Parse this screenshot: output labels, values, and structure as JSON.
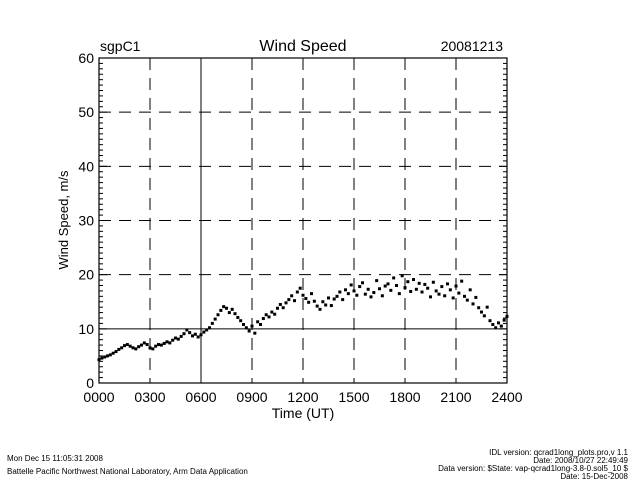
{
  "chart_data": {
    "type": "scatter",
    "title": "Wind Speed",
    "left_label": "sgpC1",
    "right_label": "20081213",
    "xlabel": "Time (UT)",
    "ylabel": "Wind Speed, m/s",
    "xlim": [
      0,
      24
    ],
    "ylim": [
      0,
      60
    ],
    "x_ticks": [
      0,
      3,
      6,
      9,
      12,
      15,
      18,
      21,
      24
    ],
    "x_tick_labels": [
      "0000",
      "0300",
      "0600",
      "0900",
      "1200",
      "1500",
      "1800",
      "2100",
      "2400"
    ],
    "y_ticks": [
      0,
      10,
      20,
      30,
      40,
      50,
      60
    ],
    "y_tick_labels": [
      "0",
      "10",
      "20",
      "30",
      "40",
      "50",
      "60"
    ],
    "grid": {
      "vertical_dashed": [
        3,
        9,
        12,
        15,
        18,
        21
      ],
      "vertical_solid": [
        6
      ],
      "horizontal_dashed": [
        20,
        30,
        40,
        50
      ],
      "horizontal_solid": [
        10
      ]
    },
    "x_step_hours": 0.16667,
    "y": [
      4.3,
      4.6,
      4.8,
      5.0,
      5.2,
      5.5,
      5.8,
      6.2,
      6.5,
      6.9,
      7.1,
      6.8,
      6.5,
      6.3,
      6.7,
      7.0,
      7.4,
      7.1,
      6.5,
      6.3,
      6.8,
      7.1,
      7.0,
      7.3,
      7.6,
      7.4,
      7.9,
      8.3,
      8.1,
      8.6,
      9.1,
      9.8,
      9.3,
      8.7,
      9.0,
      8.5,
      8.9,
      9.4,
      9.8,
      10.2,
      11.0,
      11.8,
      12.6,
      13.4,
      14.1,
      13.8,
      13.0,
      13.6,
      12.8,
      12.1,
      11.5,
      10.8,
      10.2,
      9.6,
      10.5,
      9.2,
      11.3,
      10.8,
      11.9,
      12.6,
      12.2,
      13.1,
      12.7,
      13.8,
      14.5,
      13.9,
      14.8,
      15.4,
      16.1,
      15.2,
      16.8,
      17.5,
      16.2,
      15.6,
      14.9,
      16.5,
      15.1,
      14.2,
      13.6,
      15.0,
      14.4,
      15.7,
      14.3,
      15.5,
      16.0,
      16.8,
      15.4,
      17.2,
      16.5,
      18.1,
      17.0,
      16.2,
      17.8,
      18.5,
      16.4,
      17.3,
      15.9,
      16.7,
      18.9,
      17.4,
      16.1,
      17.9,
      18.3,
      17.1,
      19.4,
      18.0,
      16.5,
      19.8,
      17.6,
      18.7,
      16.9,
      19.1,
      17.3,
      18.4,
      16.8,
      18.2,
      17.5,
      15.9,
      18.6,
      17.0,
      16.4,
      17.8,
      16.1,
      18.3,
      17.2,
      15.7,
      17.9,
      16.6,
      18.8,
      16.0,
      15.3,
      17.2,
      14.6,
      15.8,
      13.9,
      13.1,
      12.4,
      14.0,
      11.5,
      10.8,
      10.2,
      11.1,
      10.5,
      11.6,
      12.3
    ]
  },
  "footer": {
    "timestamp": "Mon Dec 15 11:05:31 2008",
    "organization": "Battelle Pacific Northwest National Laboratory, Arm Data Application",
    "idl_version": "IDL version: qcrad1long_plots.pro,v 1.1",
    "idl_date": "Date: 2008/10/27 22:49:49",
    "data_version": "Data version: $State: vap-qcrad1long-3.8-0.sol5_10 $",
    "data_date": "Date: 15-Dec-2008"
  }
}
